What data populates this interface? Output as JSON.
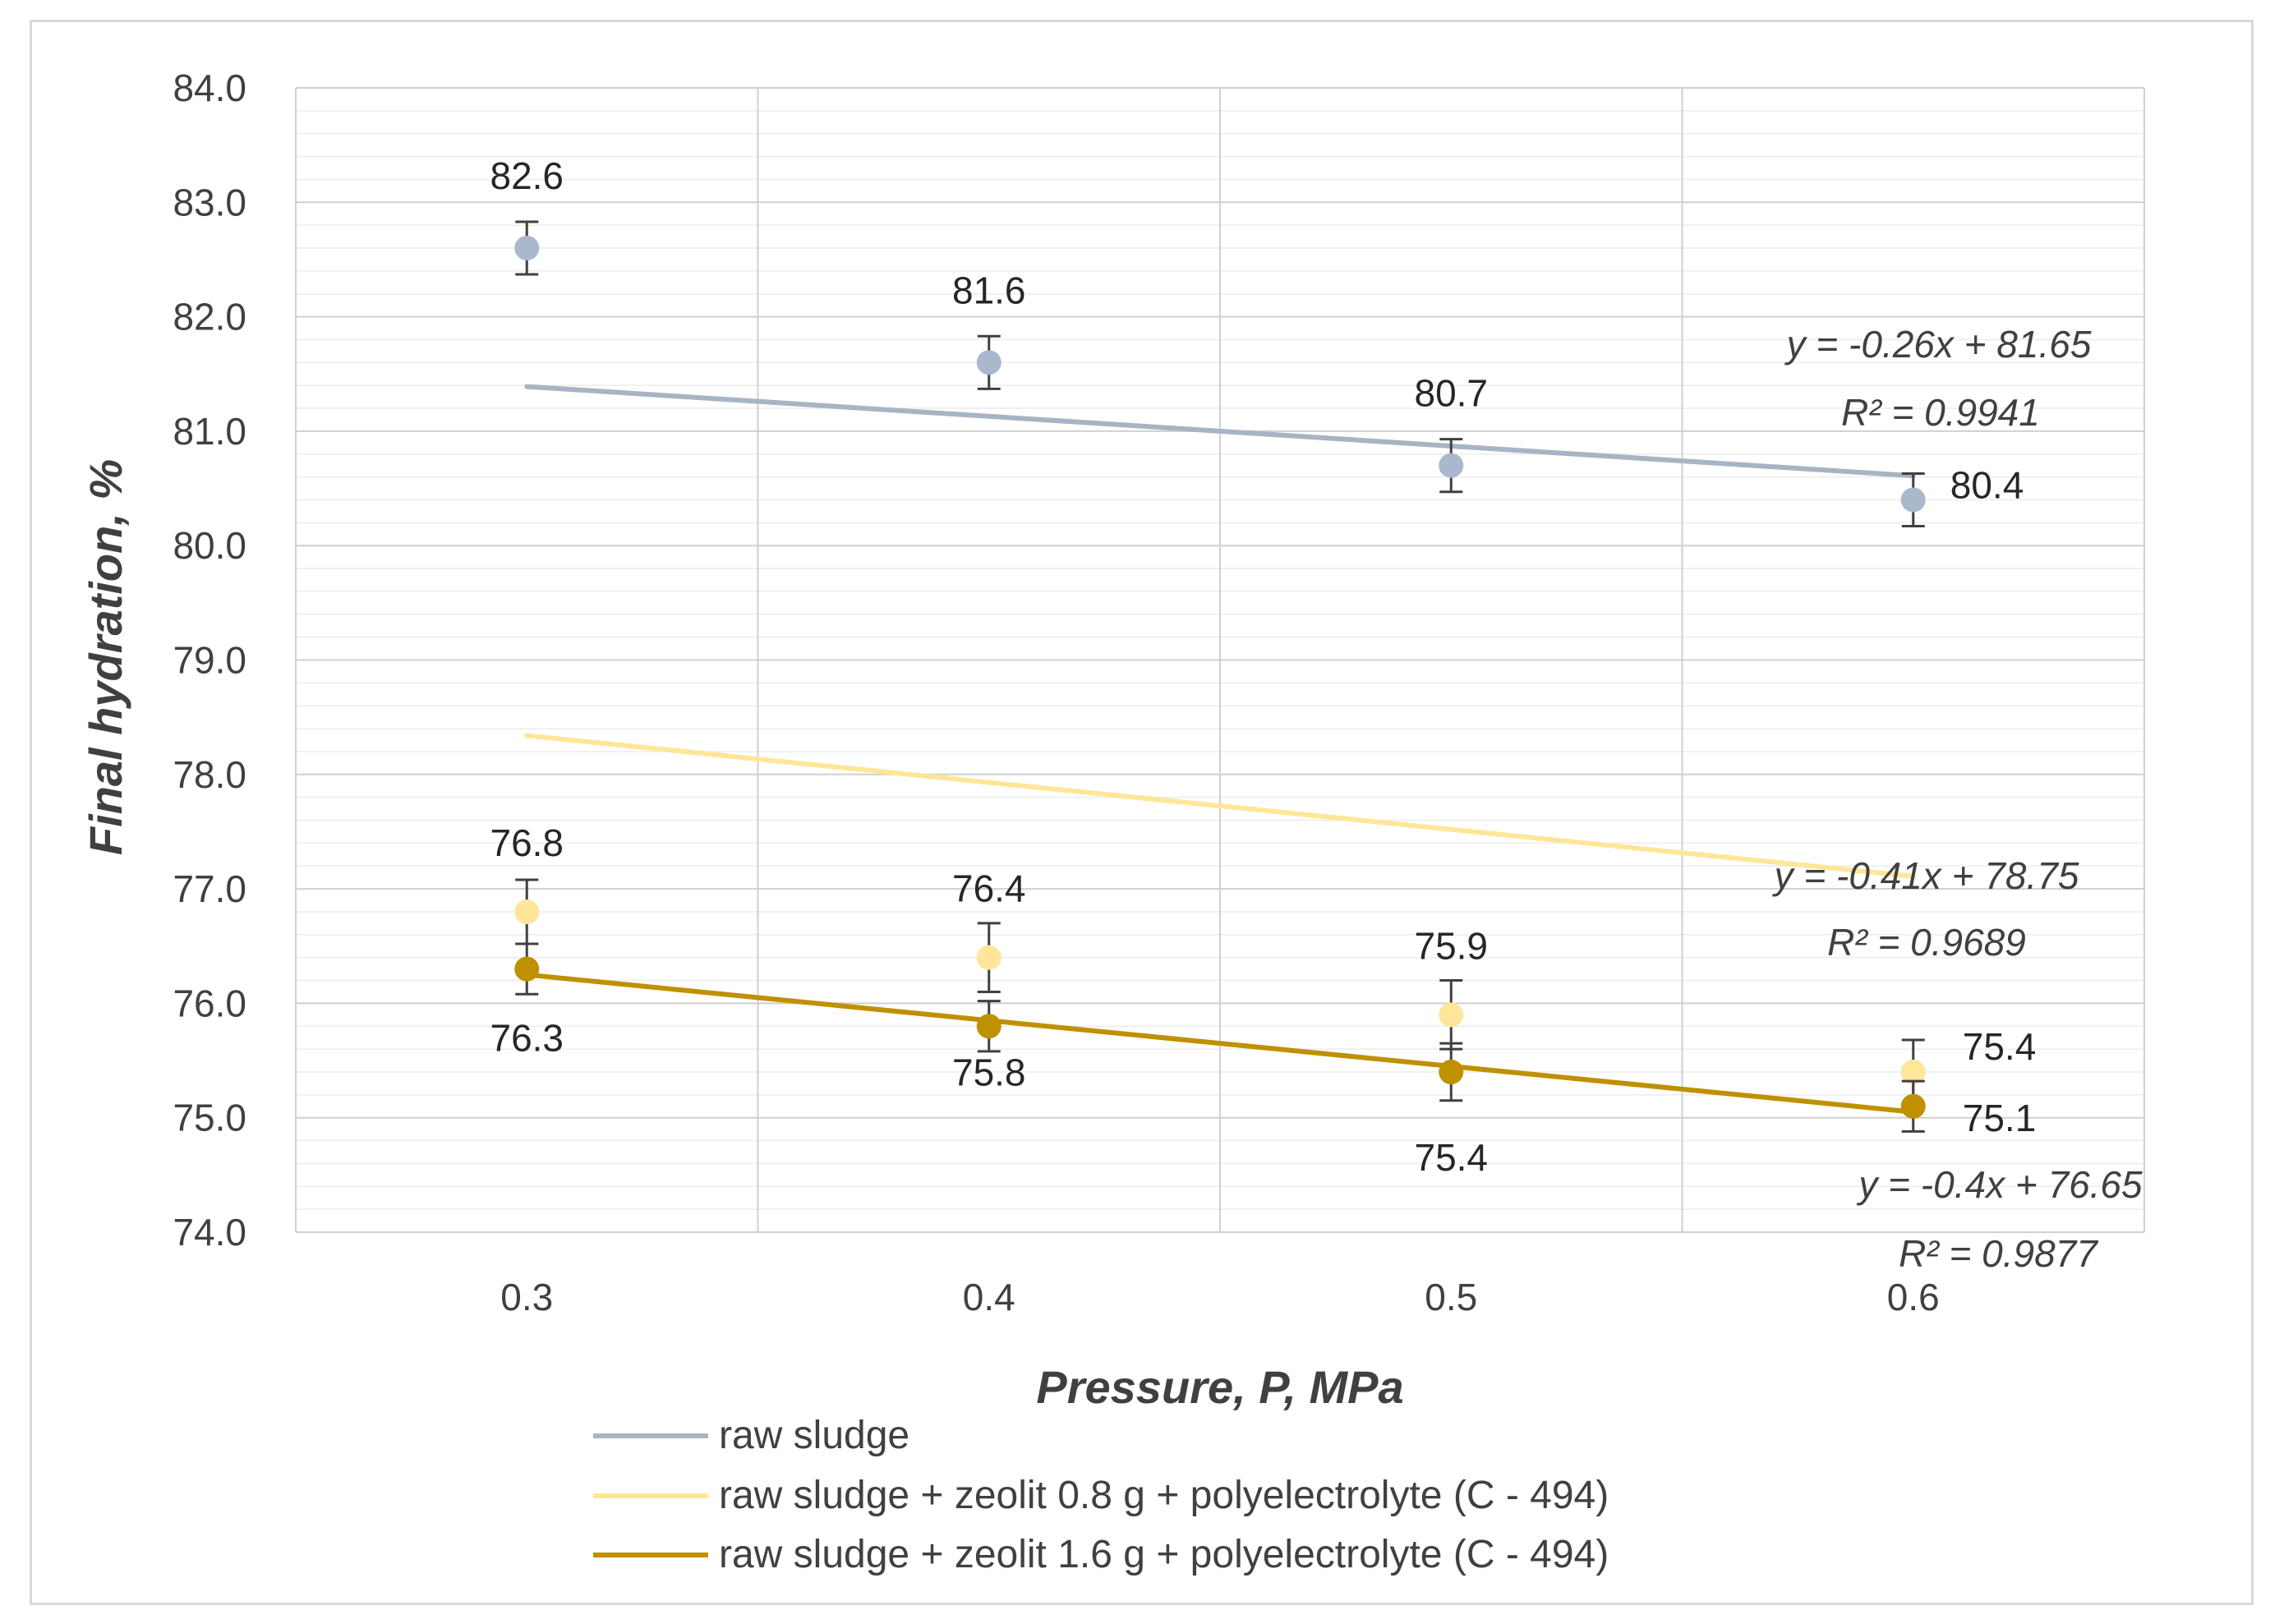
{
  "chart_data": {
    "type": "scatter",
    "xlabel": "Pressure, P,  MPa",
    "ylabel": "Final hydration, %",
    "x": [
      0.3,
      0.4,
      0.5,
      0.6
    ],
    "x_tick_labels": [
      "0.3",
      "0.4",
      "0.5",
      "0.6"
    ],
    "ylim": [
      74.0,
      84.0
    ],
    "y_ticks": [
      74,
      75,
      76,
      77,
      78,
      79,
      80,
      81,
      82,
      83,
      84
    ],
    "y_tick_labels": [
      "74.0",
      "75.0",
      "76.0",
      "77.0",
      "78.0",
      "79.0",
      "80.0",
      "81.0",
      "82.0",
      "83.0",
      "84.0"
    ],
    "grid": true,
    "legend_position": "bottom",
    "series": [
      {
        "name": "raw sludge",
        "color": "#a9b8cc",
        "line_color": "#a8b4c4",
        "values": [
          82.6,
          81.6,
          80.7,
          80.4
        ],
        "labels": [
          "82.6",
          "81.6",
          "80.7",
          "80.4"
        ],
        "error": [
          0.23,
          0.23,
          0.23,
          0.23
        ],
        "trendline": {
          "slope": -0.26,
          "intercept": 81.65,
          "equation": "y = -0.26x + 81.65",
          "r2": "R² = 0.9941"
        }
      },
      {
        "name": "raw sludge + zeolit 0.8 g + polyelectrolyte (C - 494)",
        "color": "#ffe699",
        "line_color": "#ffe699",
        "values": [
          76.8,
          76.4,
          75.9,
          75.4
        ],
        "labels": [
          "76.8",
          "76.4",
          "75.9",
          "75.4"
        ],
        "error": [
          0.28,
          0.3,
          0.3,
          0.28
        ],
        "trendline": {
          "slope": -0.41,
          "intercept": 78.75,
          "equation": "y = -0.41x + 78.75",
          "r2": "R² = 0.9689"
        }
      },
      {
        "name": "raw sludge + zeolit 1.6 g + polyelectrolyte (C - 494)",
        "color": "#bf9000",
        "line_color": "#bf9000",
        "values": [
          76.3,
          75.8,
          75.4,
          75.1
        ],
        "labels": [
          "76.3",
          "75.8",
          "75.4",
          "75.1"
        ],
        "error": [
          0.22,
          0.22,
          0.25,
          0.22
        ],
        "trendline": {
          "slope": -0.4,
          "intercept": 76.65,
          "equation": "y = -0.4x + 76.65",
          "r2": "R² = 0.9877"
        }
      }
    ]
  }
}
